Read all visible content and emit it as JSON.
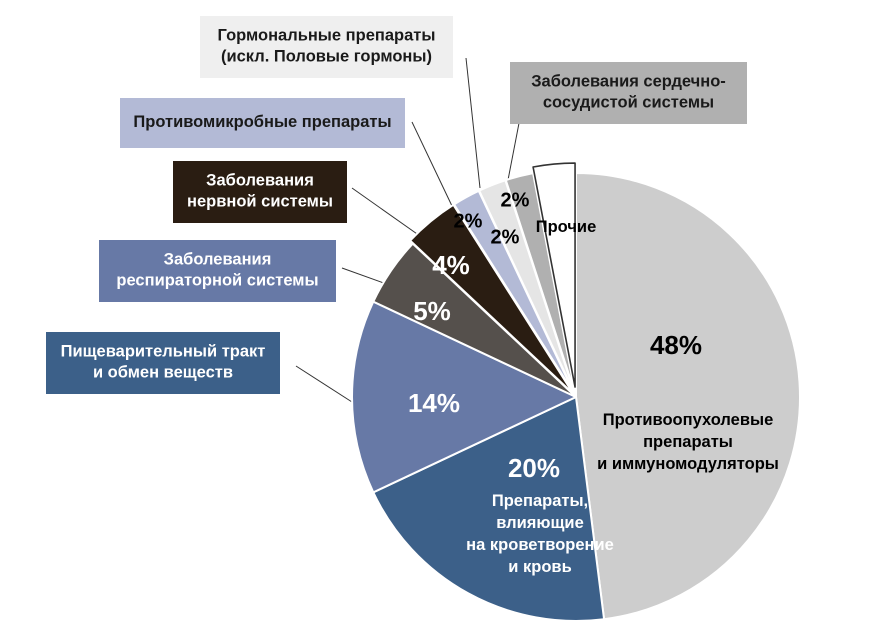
{
  "chart_data": {
    "type": "pie",
    "start_angle_deg": 0,
    "direction": "clockwise",
    "slices": [
      {
        "percent_label": "48%",
        "value": 48,
        "color": "#cdcdcd",
        "text_color": "#000000",
        "inner_label": [
          "Противоопухолевые",
          "препараты",
          "и иммуномодуляторы"
        ]
      },
      {
        "percent_label": "20%",
        "value": 20,
        "color": "#3c6089",
        "text_color": "#ffffff",
        "inner_label": [
          "Препараты,",
          "влияющие",
          "на кроветворение",
          "и кровь"
        ]
      },
      {
        "percent_label": "14%",
        "value": 14,
        "color": "#6779a6",
        "text_color": "#ffffff",
        "box_label": [
          "Пищеварительный тракт",
          "и обмен веществ"
        ],
        "box_color": "#3c6089",
        "box_text_color": "#ffffff"
      },
      {
        "percent_label": "5%",
        "value": 5,
        "color": "#55504c",
        "text_color": "#ffffff",
        "box_label": [
          "Заболевания",
          "респираторной  системы"
        ],
        "box_color": "#6779a6",
        "box_text_color": "#ffffff"
      },
      {
        "percent_label": "4%",
        "value": 4,
        "color": "#2a1d12",
        "text_color": "#ffffff",
        "box_label": [
          "Заболевания",
          "нервной системы"
        ],
        "box_color": "#2a1d12",
        "box_text_color": "#ffffff"
      },
      {
        "percent_label": "2%",
        "value": 2,
        "color": "#b3bad6",
        "text_color": "#000000",
        "box_label": [
          "Противомикробные препараты"
        ],
        "box_color": "#b3bad6",
        "box_text_color": "#1a1a1a"
      },
      {
        "percent_label": "2%",
        "value": 2,
        "color": "#e5e5e5",
        "text_color": "#000000",
        "box_label": [
          "Гормональные препараты",
          "(искл. Половые гормоны)"
        ],
        "box_color": "#efefef",
        "box_text_color": "#1a1a1a"
      },
      {
        "percent_label": "2%",
        "value": 2,
        "color": "#b0b0b0",
        "text_color": "#000000",
        "box_label": [
          "Заболевания сердечно-",
          "сосудистой  системы"
        ],
        "box_color": "#b0b0b0",
        "box_text_color": "#1a1a1a"
      },
      {
        "percent_label": "",
        "value": 3,
        "color": "#ffffff",
        "text_color": "#000000",
        "outline": "#333333",
        "inner_label": [
          "Прочие"
        ]
      }
    ]
  }
}
